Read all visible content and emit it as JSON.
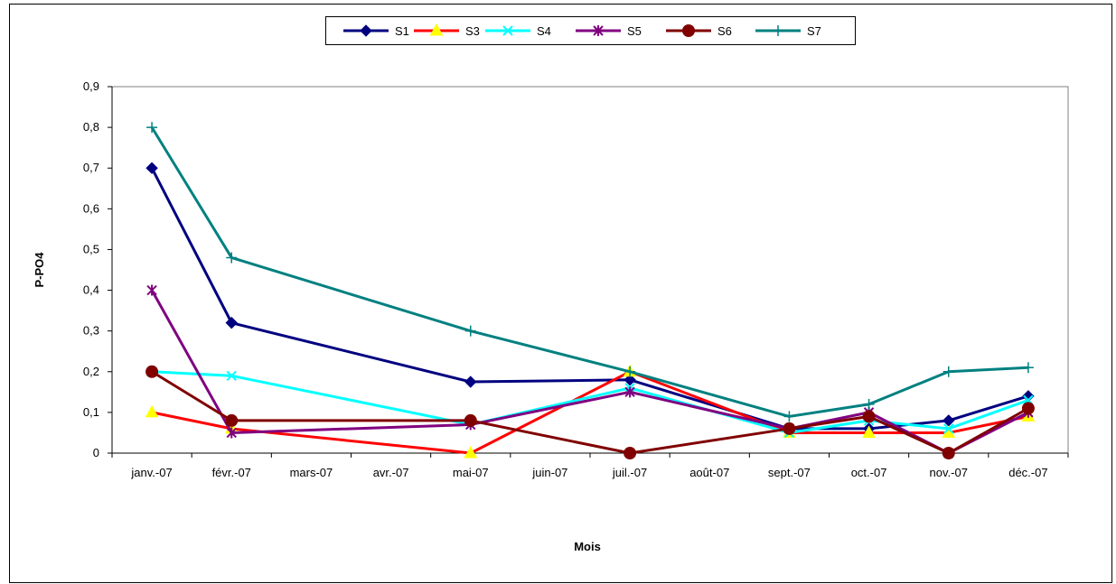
{
  "chart_data": {
    "type": "line",
    "title": "",
    "xlabel": "Mois",
    "ylabel": "P-PO4",
    "categories": [
      "janv.-07",
      "févr.-07",
      "mars-07",
      "avr.-07",
      "mai-07",
      "juin-07",
      "juil.-07",
      "août-07",
      "sept.-07",
      "oct.-07",
      "nov.-07",
      "déc.-07"
    ],
    "ylim": [
      0,
      0.9
    ],
    "yticks": [
      "0",
      "0,1",
      "0,2",
      "0,3",
      "0,4",
      "0,5",
      "0,6",
      "0,7",
      "0,8",
      "0,9"
    ],
    "grid": false,
    "legend_position": "top-center",
    "series": [
      {
        "name": "S1",
        "color": "#000080",
        "marker": "diamond",
        "values": [
          0.7,
          0.32,
          null,
          null,
          0.175,
          null,
          0.18,
          null,
          0.06,
          0.06,
          0.08,
          0.14
        ]
      },
      {
        "name": "S3",
        "color": "#ff0000",
        "marker": "triangle",
        "marker_color": "#ffff00",
        "values": [
          0.1,
          0.06,
          null,
          null,
          0.0,
          null,
          0.2,
          null,
          0.05,
          0.05,
          0.05,
          0.09
        ]
      },
      {
        "name": "S4",
        "color": "#00ffff",
        "marker": "x",
        "values": [
          0.2,
          0.19,
          null,
          null,
          0.07,
          null,
          0.16,
          null,
          0.05,
          0.08,
          0.06,
          0.13
        ]
      },
      {
        "name": "S5",
        "color": "#800080",
        "marker": "star",
        "values": [
          0.4,
          0.05,
          null,
          null,
          0.07,
          null,
          0.15,
          null,
          0.06,
          0.1,
          0.0,
          0.1
        ]
      },
      {
        "name": "S6",
        "color": "#800000",
        "marker": "circle",
        "values": [
          0.2,
          0.08,
          null,
          null,
          0.08,
          null,
          0.0,
          null,
          0.06,
          0.09,
          0.0,
          0.11
        ]
      },
      {
        "name": "S7",
        "color": "#008080",
        "marker": "plus",
        "values": [
          0.8,
          0.48,
          null,
          null,
          0.3,
          null,
          0.2,
          null,
          0.09,
          0.12,
          0.2,
          0.21
        ]
      }
    ]
  }
}
